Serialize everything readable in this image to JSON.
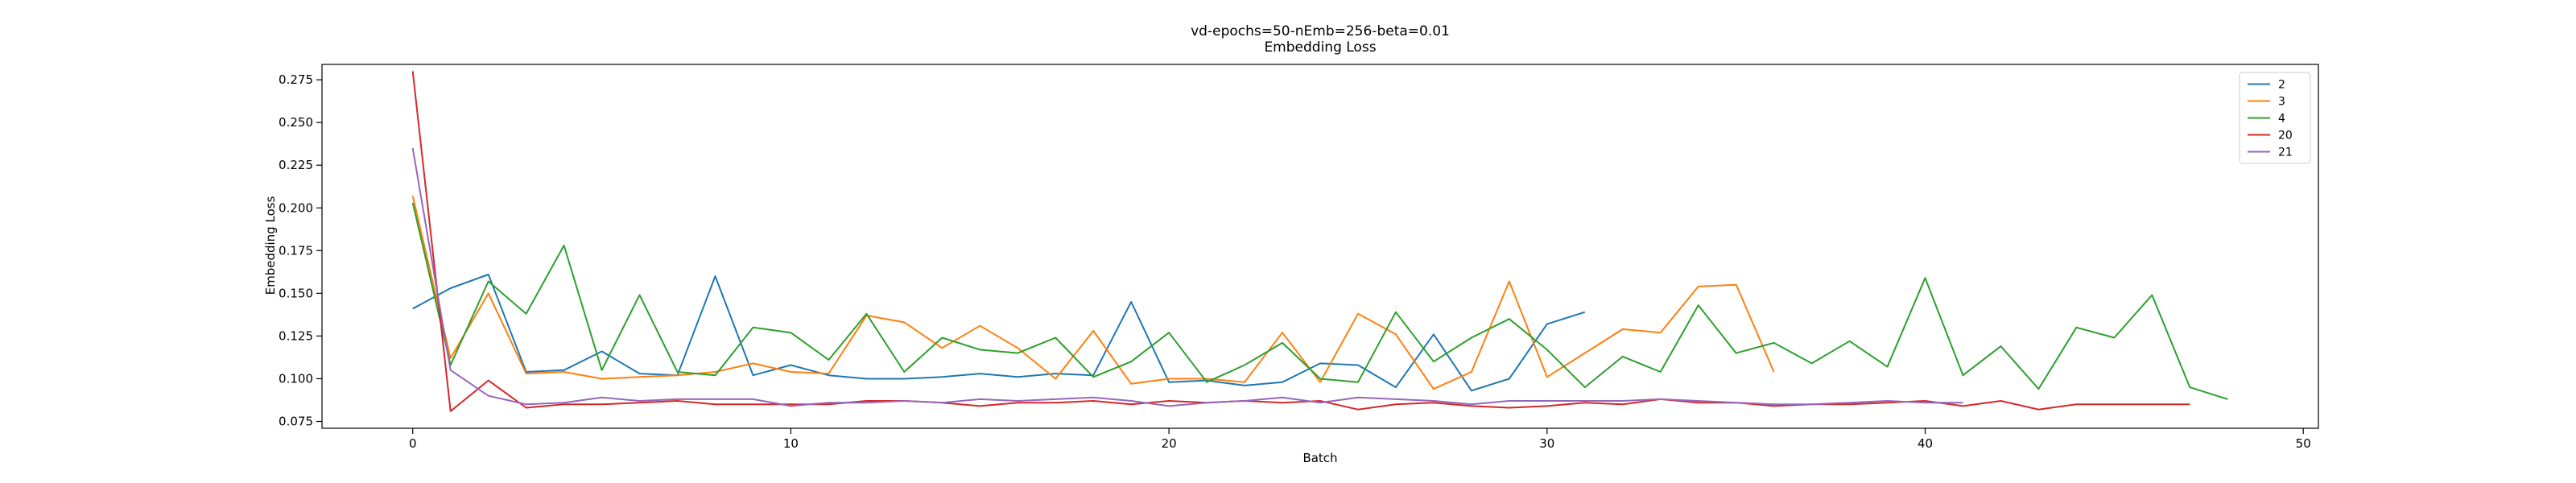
{
  "chart_data": {
    "type": "line",
    "title": "vd-epochs=50-nEmb=256-beta=0.01",
    "subtitle": "Embedding Loss",
    "xlabel": "Batch",
    "ylabel": "Embedding Loss",
    "xlim": [
      -2.4,
      50.4
    ],
    "ylim": [
      0.071,
      0.284
    ],
    "xticks": [
      0,
      10,
      20,
      30,
      40,
      50
    ],
    "yticks": [
      0.075,
      0.1,
      0.125,
      0.15,
      0.175,
      0.2,
      0.225,
      0.25,
      0.275
    ],
    "ytick_labels": [
      "0.075",
      "0.100",
      "0.125",
      "0.150",
      "0.175",
      "0.200",
      "0.225",
      "0.250",
      "0.275"
    ],
    "grid": false,
    "legend_position": "top-right",
    "series": [
      {
        "name": "2",
        "color": "#1f77b4",
        "values": [
          0.141,
          0.153,
          0.161,
          0.104,
          0.105,
          0.116,
          0.103,
          0.102,
          0.16,
          0.102,
          0.108,
          0.102,
          0.1,
          0.1,
          0.101,
          0.103,
          0.101,
          0.103,
          0.102,
          0.145,
          0.098,
          0.099,
          0.096,
          0.098,
          0.109,
          0.108,
          0.095,
          0.126,
          0.093,
          0.1,
          0.132,
          0.139
        ]
      },
      {
        "name": "3",
        "color": "#ff7f0e",
        "values": [
          0.207,
          0.112,
          0.15,
          0.103,
          0.104,
          0.1,
          0.101,
          0.102,
          0.104,
          0.109,
          0.104,
          0.103,
          0.137,
          0.133,
          0.118,
          0.131,
          0.118,
          0.1,
          0.128,
          0.097,
          0.1,
          0.1,
          0.098,
          0.127,
          0.098,
          0.138,
          0.126,
          0.094,
          0.104,
          0.157,
          0.101,
          0.115,
          0.129,
          0.127,
          0.154,
          0.155,
          0.104
        ]
      },
      {
        "name": "4",
        "color": "#2ca02c",
        "values": [
          0.203,
          0.108,
          0.157,
          0.138,
          0.178,
          0.105,
          0.149,
          0.104,
          0.102,
          0.13,
          0.127,
          0.111,
          0.138,
          0.104,
          0.124,
          0.117,
          0.115,
          0.124,
          0.101,
          0.11,
          0.127,
          0.098,
          0.108,
          0.121,
          0.1,
          0.098,
          0.139,
          0.11,
          0.124,
          0.135,
          0.117,
          0.095,
          0.113,
          0.104,
          0.143,
          0.115,
          0.121,
          0.109,
          0.122,
          0.107,
          0.159,
          0.102,
          0.119,
          0.094,
          0.13,
          0.124,
          0.149,
          0.095,
          0.088
        ]
      },
      {
        "name": "20",
        "color": "#d62728",
        "values": [
          0.28,
          0.081,
          0.099,
          0.083,
          0.085,
          0.085,
          0.086,
          0.087,
          0.085,
          0.085,
          0.085,
          0.085,
          0.087,
          0.087,
          0.086,
          0.084,
          0.086,
          0.086,
          0.087,
          0.085,
          0.087,
          0.086,
          0.087,
          0.086,
          0.087,
          0.082,
          0.085,
          0.086,
          0.084,
          0.083,
          0.084,
          0.086,
          0.085,
          0.088,
          0.086,
          0.086,
          0.084,
          0.085,
          0.085,
          0.086,
          0.087,
          0.084,
          0.087,
          0.082,
          0.085,
          0.085,
          0.085,
          0.085
        ]
      },
      {
        "name": "21",
        "color": "#9467bd",
        "values": [
          0.235,
          0.105,
          0.09,
          0.085,
          0.086,
          0.089,
          0.087,
          0.088,
          0.088,
          0.088,
          0.084,
          0.086,
          0.086,
          0.087,
          0.086,
          0.088,
          0.087,
          0.088,
          0.089,
          0.087,
          0.084,
          0.086,
          0.087,
          0.089,
          0.086,
          0.089,
          0.088,
          0.087,
          0.085,
          0.087,
          0.087,
          0.087,
          0.087,
          0.088,
          0.087,
          0.086,
          0.085,
          0.085,
          0.086,
          0.087,
          0.086,
          0.086
        ]
      }
    ]
  }
}
